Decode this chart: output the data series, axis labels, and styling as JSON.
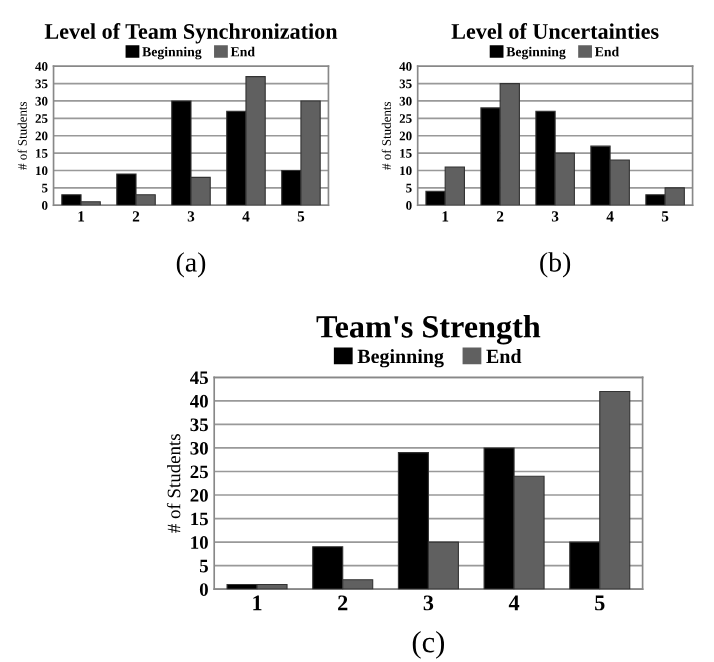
{
  "chart_data": [
    {
      "type": "bar",
      "title": "Level of Team Synchronization",
      "ylabel": "# of Students",
      "categories": [
        "1",
        "2",
        "3",
        "4",
        "5"
      ],
      "annotations": [
        "(a)"
      ],
      "ylim": [
        0,
        40
      ],
      "yticks": [
        0,
        5,
        10,
        15,
        20,
        25,
        30,
        35,
        40
      ],
      "grid": "y",
      "legend": "top",
      "series": [
        {
          "name": "Beginning",
          "color": "#000000",
          "values": [
            3,
            9,
            30,
            27,
            10
          ]
        },
        {
          "name": "End",
          "color": "#606060",
          "values": [
            1,
            3,
            8,
            37,
            30
          ]
        }
      ]
    },
    {
      "type": "bar",
      "title": "Level of Uncertainties",
      "ylabel": "# of Students",
      "categories": [
        "1",
        "2",
        "3",
        "4",
        "5"
      ],
      "annotations": [
        "(b)"
      ],
      "ylim": [
        0,
        40
      ],
      "yticks": [
        0,
        5,
        10,
        15,
        20,
        25,
        30,
        35,
        40
      ],
      "grid": "y",
      "legend": "top",
      "series": [
        {
          "name": "Beginning",
          "color": "#000000",
          "values": [
            4,
            28,
            27,
            17,
            3
          ]
        },
        {
          "name": "End",
          "color": "#606060",
          "values": [
            11,
            35,
            15,
            13,
            5
          ]
        }
      ]
    },
    {
      "type": "bar",
      "title": "Team's Strength",
      "ylabel": "# of Students",
      "categories": [
        "1",
        "2",
        "3",
        "4",
        "5"
      ],
      "annotations": [
        "(c)"
      ],
      "ylim": [
        0,
        45
      ],
      "yticks": [
        0,
        5,
        10,
        15,
        20,
        25,
        30,
        35,
        40,
        45
      ],
      "grid": "y",
      "legend": "top",
      "series": [
        {
          "name": "Beginning",
          "color": "#000000",
          "values": [
            1,
            9,
            29,
            30,
            10
          ]
        },
        {
          "name": "End",
          "color": "#606060",
          "values": [
            1,
            2,
            10,
            24,
            42
          ]
        }
      ]
    }
  ]
}
